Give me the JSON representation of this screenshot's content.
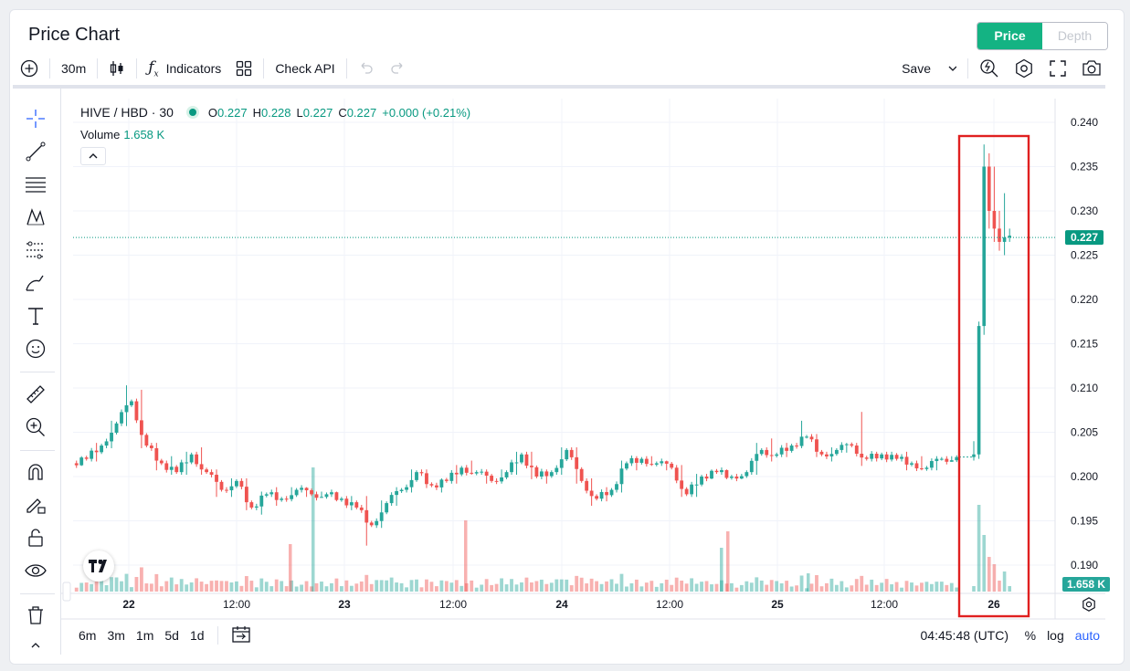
{
  "header": {
    "title": "Price Chart",
    "tab_price": "Price",
    "tab_depth": "Depth"
  },
  "toolbar": {
    "interval": "30m",
    "indicators": "Indicators",
    "check_api": "Check API",
    "save": "Save"
  },
  "legend": {
    "symbol": "HIVE / HBD · 30",
    "o_label": "O",
    "o_value": "0.227",
    "h_label": "H",
    "h_value": "0.228",
    "l_label": "L",
    "l_value": "0.227",
    "c_label": "C",
    "c_value": "0.227",
    "change": "+0.000 (+0.21%)",
    "volume_label": "Volume",
    "volume_value": "1.658 K"
  },
  "bottom": {
    "ranges": [
      "6m",
      "3m",
      "1m",
      "5d",
      "1d"
    ],
    "clock": "04:45:48 (UTC)",
    "percent": "%",
    "log": "log",
    "auto": "auto"
  },
  "colors": {
    "up": "#26a69a",
    "down": "#ef5350",
    "accent": "#14b383",
    "highlight": "#e02020"
  },
  "chart_data": {
    "type": "candlestick",
    "price_axis": {
      "ticks": [
        "0.240",
        "0.235",
        "0.230",
        "0.225",
        "0.220",
        "0.215",
        "0.210",
        "0.205",
        "0.200",
        "0.195",
        "0.190"
      ],
      "range": [
        0.186,
        0.2405
      ]
    },
    "time_axis": {
      "ticks": [
        "22",
        "12:00",
        "23",
        "12:00",
        "24",
        "12:00",
        "25",
        "12:00",
        "26"
      ]
    },
    "last_price_label": "0.227",
    "volume_label": "1.658 K",
    "series": {
      "ohlc_sampled": [
        [
          0.2015,
          0.2025,
          0.201,
          0.202
        ],
        [
          0.202,
          0.204,
          0.2015,
          0.2035
        ],
        [
          0.2035,
          0.2065,
          0.203,
          0.206
        ],
        [
          0.206,
          0.2105,
          0.2055,
          0.2085
        ],
        [
          0.2085,
          0.21,
          0.203,
          0.2035
        ],
        [
          0.2035,
          0.204,
          0.2005,
          0.2015
        ],
        [
          0.2015,
          0.2025,
          0.2,
          0.2005
        ],
        [
          0.2005,
          0.203,
          0.2,
          0.2025
        ],
        [
          0.2025,
          0.2035,
          0.2,
          0.2005
        ],
        [
          0.2005,
          0.201,
          0.1975,
          0.1985
        ],
        [
          0.1985,
          0.2,
          0.1975,
          0.1995
        ],
        [
          0.1995,
          0.2,
          0.196,
          0.1965
        ],
        [
          0.1965,
          0.1985,
          0.1955,
          0.198
        ],
        [
          0.198,
          0.199,
          0.1965,
          0.1975
        ],
        [
          0.1975,
          0.199,
          0.197,
          0.1985
        ],
        [
          0.1985,
          0.199,
          0.1975,
          0.198
        ],
        [
          0.198,
          0.1985,
          0.1975,
          0.198
        ],
        [
          0.198,
          0.1985,
          0.197,
          0.1975
        ],
        [
          0.1975,
          0.198,
          0.196,
          0.1965
        ],
        [
          0.1965,
          0.198,
          0.192,
          0.1945
        ],
        [
          0.1945,
          0.1975,
          0.194,
          0.197
        ],
        [
          0.197,
          0.199,
          0.1965,
          0.1985
        ],
        [
          0.1985,
          0.201,
          0.198,
          0.2005
        ],
        [
          0.2005,
          0.201,
          0.1985,
          0.199
        ],
        [
          0.199,
          0.2,
          0.198,
          0.1995
        ],
        [
          0.1995,
          0.2015,
          0.199,
          0.201
        ],
        [
          0.201,
          0.202,
          0.2,
          0.2005
        ],
        [
          0.2005,
          0.201,
          0.199,
          0.1995
        ],
        [
          0.1995,
          0.201,
          0.199,
          0.2005
        ],
        [
          0.2005,
          0.203,
          0.2,
          0.2025
        ],
        [
          0.2025,
          0.203,
          0.1995,
          0.2
        ],
        [
          0.2,
          0.201,
          0.199,
          0.2005
        ],
        [
          0.2005,
          0.2035,
          0.2,
          0.203
        ],
        [
          0.203,
          0.2035,
          0.199,
          0.1995
        ],
        [
          0.1995,
          0.2,
          0.1965,
          0.1975
        ],
        [
          0.1975,
          0.199,
          0.197,
          0.1985
        ],
        [
          0.1985,
          0.202,
          0.198,
          0.2015
        ],
        [
          0.2015,
          0.2025,
          0.2005,
          0.202
        ],
        [
          0.202,
          0.2025,
          0.201,
          0.2015
        ],
        [
          0.2015,
          0.202,
          0.2005,
          0.201
        ],
        [
          0.201,
          0.2015,
          0.1975,
          0.198
        ],
        [
          0.198,
          0.2005,
          0.1975,
          0.2
        ],
        [
          0.2,
          0.201,
          0.1995,
          0.2005
        ],
        [
          0.2005,
          0.201,
          0.1995,
          0.2
        ],
        [
          0.2,
          0.2005,
          0.1995,
          0.2005
        ],
        [
          0.2005,
          0.204,
          0.2,
          0.203
        ],
        [
          0.203,
          0.2045,
          0.2015,
          0.2025
        ],
        [
          0.2025,
          0.204,
          0.202,
          0.2035
        ],
        [
          0.2035,
          0.2065,
          0.203,
          0.2045
        ],
        [
          0.2045,
          0.205,
          0.202,
          0.2025
        ],
        [
          0.2025,
          0.2035,
          0.2015,
          0.203
        ],
        [
          0.203,
          0.204,
          0.2025,
          0.2035
        ],
        [
          0.2035,
          0.2075,
          0.201,
          0.202
        ],
        [
          0.202,
          0.203,
          0.2015,
          0.2025
        ],
        [
          0.2025,
          0.203,
          0.2015,
          0.202
        ],
        [
          0.202,
          0.203,
          0.2005,
          0.2015
        ],
        [
          0.2015,
          0.2025,
          0.2005,
          0.201
        ],
        [
          0.201,
          0.2025,
          0.2005,
          0.202
        ],
        [
          0.202,
          0.2025,
          0.2015,
          0.2022
        ]
      ],
      "ohlc_highlight": [
        [
          0.2022,
          0.204,
          0.2018,
          0.2025
        ],
        [
          0.2025,
          0.2175,
          0.202,
          0.217
        ],
        [
          0.217,
          0.2375,
          0.216,
          0.235
        ],
        [
          0.235,
          0.2365,
          0.228,
          0.23
        ],
        [
          0.23,
          0.235,
          0.2265,
          0.228
        ],
        [
          0.228,
          0.23,
          0.2255,
          0.2265
        ],
        [
          0.2265,
          0.232,
          0.225,
          0.227
        ],
        [
          0.227,
          0.228,
          0.2265,
          0.2272
        ]
      ],
      "volume_note": "volume bars rendered per candle (relative)"
    }
  }
}
